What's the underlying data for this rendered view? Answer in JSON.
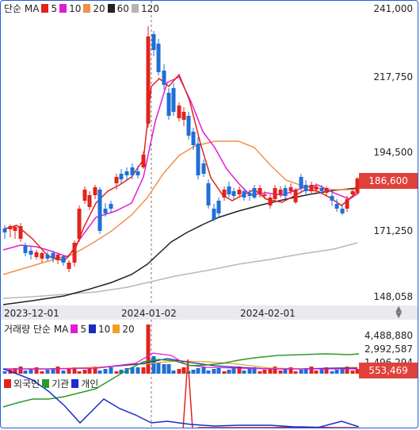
{
  "main_legend": {
    "title": "단순 MA",
    "items": [
      {
        "label": "5",
        "color": "#e0241b"
      },
      {
        "label": "10",
        "color": "#e21bd4"
      },
      {
        "label": "20",
        "color": "#f3904a"
      },
      {
        "label": "60",
        "color": "#222222"
      },
      {
        "label": "120",
        "color": "#b5b5b5"
      }
    ]
  },
  "price_axis": {
    "labels": [
      "241,000",
      "217,750",
      "194,500",
      "171,250",
      "148,058"
    ],
    "current_price": "186,600",
    "current_color": "#e0413b"
  },
  "date_axis": [
    "2023-12-01",
    "2024-01-02",
    "2024-02-01"
  ],
  "volume_legend": {
    "title": "거래량 단순 MA",
    "items": [
      {
        "label": "5",
        "color": "#e21bd4"
      },
      {
        "label": "10",
        "color": "#1a2bbd"
      },
      {
        "label": "20",
        "color": "#f0a020"
      }
    ]
  },
  "volume_axis": {
    "labels": [
      "4,488,880",
      "2,992,587",
      "1,496,294"
    ],
    "current_volume": "553,469"
  },
  "investor_legend": {
    "items": [
      {
        "label": "외국인",
        "color": "#e0241b"
      },
      {
        "label": "기관",
        "color": "#2a9a2a"
      },
      {
        "label": "개인",
        "color": "#1a2bd0"
      }
    ]
  },
  "colors": {
    "up": "#e0241b",
    "down": "#1f6fd6"
  }
}
